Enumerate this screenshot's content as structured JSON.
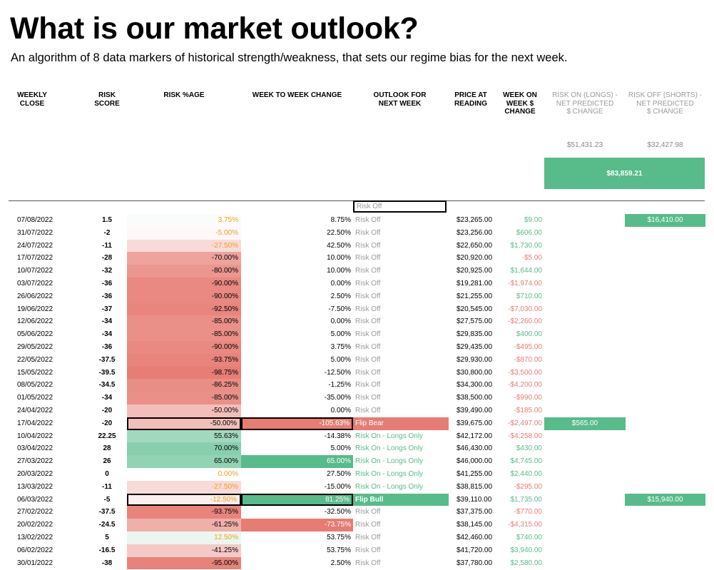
{
  "page": {
    "title": "What is our market outlook?",
    "subtitle": "An algorithm of 8 data markers of historical strength/weakness, that sets our regime bias for the next week."
  },
  "headers": {
    "weekly_close": "WEEKLY\nCLOSE",
    "risk_score": "RISK\nSCORE",
    "risk_pct": "RISK %AGE",
    "wow_change": "WEEK TO WEEK CHANGE",
    "outlook": "OUTLOOK FOR\nNEXT WEEK",
    "price": "PRICE AT\nREADING",
    "week_change": "WEEK ON\nWEEK $\nCHANGE",
    "risk_on": "RISK ON (LONGS) -\nNET PREDICTED\n$ CHANGE",
    "risk_off": "RISK OFF (SHORTS) -\nNET PREDICTED\n$ CHANGE"
  },
  "summary": {
    "risk_on_total": "$51,431.23",
    "risk_off_total": "$32,427.98",
    "combined_total": "$83,859.21"
  },
  "blank_row": {
    "outlook": "Risk Off"
  },
  "colors": {
    "green": "#57bb8a",
    "red": "#e67c73",
    "orange": "#f29e1b",
    "muted": "#9b9b9b"
  },
  "rows": [
    {
      "date": "07/08/2022",
      "score": "1.5",
      "pct": "3.75%",
      "pct_val": 3.75,
      "chg": "8.75%",
      "chg_style": "",
      "outlook": "Risk Off",
      "outlook_style": "",
      "price": "$23,265.00",
      "wk": "$9.00",
      "wk_sign": "pos",
      "on": "",
      "off": "$16,410.00",
      "boxed": false
    },
    {
      "date": "31/07/2022",
      "score": "-2",
      "pct": "-5.00%",
      "pct_val": -5,
      "chg": "22.50%",
      "chg_style": "",
      "outlook": "Risk Off",
      "outlook_style": "",
      "price": "$23,256.00",
      "wk": "$606.00",
      "wk_sign": "pos",
      "on": "",
      "off": "",
      "boxed": false
    },
    {
      "date": "24/07/2022",
      "score": "-11",
      "pct": "-27.50%",
      "pct_val": -27.5,
      "chg": "42.50%",
      "chg_style": "",
      "outlook": "Risk Off",
      "outlook_style": "",
      "price": "$22,650.00",
      "wk": "$1,730.00",
      "wk_sign": "pos",
      "on": "",
      "off": "",
      "boxed": false
    },
    {
      "date": "17/07/2022",
      "score": "-28",
      "pct": "-70.00%",
      "pct_val": -70,
      "chg": "10.00%",
      "chg_style": "",
      "outlook": "Risk Off",
      "outlook_style": "",
      "price": "$20,920.00",
      "wk": "-$5.00",
      "wk_sign": "neg",
      "on": "",
      "off": "",
      "boxed": false
    },
    {
      "date": "10/07/2022",
      "score": "-32",
      "pct": "-80.00%",
      "pct_val": -80,
      "chg": "10.00%",
      "chg_style": "",
      "outlook": "Risk Off",
      "outlook_style": "",
      "price": "$20,925.00",
      "wk": "$1,644.00",
      "wk_sign": "pos",
      "on": "",
      "off": "",
      "boxed": false
    },
    {
      "date": "03/07/2022",
      "score": "-36",
      "pct": "-90.00%",
      "pct_val": -90,
      "chg": "0.00%",
      "chg_style": "",
      "outlook": "Risk Off",
      "outlook_style": "",
      "price": "$19,281.00",
      "wk": "-$1,974.00",
      "wk_sign": "neg",
      "on": "",
      "off": "",
      "boxed": false
    },
    {
      "date": "26/06/2022",
      "score": "-36",
      "pct": "-90.00%",
      "pct_val": -90,
      "chg": "2.50%",
      "chg_style": "",
      "outlook": "Risk Off",
      "outlook_style": "",
      "price": "$21,255.00",
      "wk": "$710.00",
      "wk_sign": "pos",
      "on": "",
      "off": "",
      "boxed": false
    },
    {
      "date": "19/06/2022",
      "score": "-37",
      "pct": "-92.50%",
      "pct_val": -92.5,
      "chg": "-7.50%",
      "chg_style": "",
      "outlook": "Risk Off",
      "outlook_style": "",
      "price": "$20,545.00",
      "wk": "-$7,030.00",
      "wk_sign": "neg",
      "on": "",
      "off": "",
      "boxed": false
    },
    {
      "date": "12/06/2022",
      "score": "-34",
      "pct": "-85.00%",
      "pct_val": -85,
      "chg": "0.00%",
      "chg_style": "",
      "outlook": "Risk Off",
      "outlook_style": "",
      "price": "$27,575.00",
      "wk": "-$2,260.00",
      "wk_sign": "neg",
      "on": "",
      "off": "",
      "boxed": false
    },
    {
      "date": "05/06/2022",
      "score": "-34",
      "pct": "-85.00%",
      "pct_val": -85,
      "chg": "5.00%",
      "chg_style": "",
      "outlook": "Risk Off",
      "outlook_style": "",
      "price": "$29,835.00",
      "wk": "$400.00",
      "wk_sign": "pos",
      "on": "",
      "off": "",
      "boxed": false
    },
    {
      "date": "29/05/2022",
      "score": "-36",
      "pct": "-90.00%",
      "pct_val": -90,
      "chg": "3.75%",
      "chg_style": "",
      "outlook": "Risk Off",
      "outlook_style": "",
      "price": "$29,435.00",
      "wk": "-$495.00",
      "wk_sign": "neg",
      "on": "",
      "off": "",
      "boxed": false
    },
    {
      "date": "22/05/2022",
      "score": "-37.5",
      "pct": "-93.75%",
      "pct_val": -93.75,
      "chg": "5.00%",
      "chg_style": "",
      "outlook": "Risk Off",
      "outlook_style": "",
      "price": "$29,930.00",
      "wk": "-$870.00",
      "wk_sign": "neg",
      "on": "",
      "off": "",
      "boxed": false
    },
    {
      "date": "15/05/2022",
      "score": "-39.5",
      "pct": "-98.75%",
      "pct_val": -98.75,
      "chg": "-12.50%",
      "chg_style": "",
      "outlook": "Risk Off",
      "outlook_style": "",
      "price": "$30,800.00",
      "wk": "-$3,500.00",
      "wk_sign": "neg",
      "on": "",
      "off": "",
      "boxed": false
    },
    {
      "date": "08/05/2022",
      "score": "-34.5",
      "pct": "-86.25%",
      "pct_val": -86.25,
      "chg": "-1.25%",
      "chg_style": "",
      "outlook": "Risk Off",
      "outlook_style": "",
      "price": "$34,300.00",
      "wk": "-$4,200.00",
      "wk_sign": "neg",
      "on": "",
      "off": "",
      "boxed": false
    },
    {
      "date": "01/05/2022",
      "score": "-34",
      "pct": "-85.00%",
      "pct_val": -85,
      "chg": "-35.00%",
      "chg_style": "",
      "outlook": "Risk Off",
      "outlook_style": "",
      "price": "$38,500.00",
      "wk": "-$990.00",
      "wk_sign": "neg",
      "on": "",
      "off": "",
      "boxed": false
    },
    {
      "date": "24/04/2022",
      "score": "-20",
      "pct": "-50.00%",
      "pct_val": -50,
      "chg": "0.00%",
      "chg_style": "",
      "outlook": "Risk Off",
      "outlook_style": "",
      "price": "$39,490.00",
      "wk": "-$185.00",
      "wk_sign": "neg",
      "on": "",
      "off": "",
      "boxed": false
    },
    {
      "date": "17/04/2022",
      "score": "-20",
      "pct": "-50.00%",
      "pct_val": -50,
      "chg": "-105.63%",
      "chg_style": "red-fill",
      "outlook": "Flip Bear",
      "outlook_style": "flip-bear",
      "price": "$39,675.00",
      "wk": "-$2,497.00",
      "wk_sign": "neg",
      "on": "$565.00",
      "off": "",
      "boxed": true
    },
    {
      "date": "10/04/2022",
      "score": "22.25",
      "pct": "55.63%",
      "pct_val": 55.63,
      "chg": "-14.38%",
      "chg_style": "",
      "outlook": "Risk On - Longs Only",
      "outlook_style": "green-txt",
      "price": "$42,172.00",
      "wk": "-$4,258.00",
      "wk_sign": "neg",
      "on": "",
      "off": "",
      "boxed": false
    },
    {
      "date": "03/04/2022",
      "score": "28",
      "pct": "70.00%",
      "pct_val": 70,
      "chg": "5.00%",
      "chg_style": "",
      "outlook": "Risk On - Longs Only",
      "outlook_style": "green-txt",
      "price": "$46,430.00",
      "wk": "$430.00",
      "wk_sign": "pos",
      "on": "",
      "off": "",
      "boxed": false
    },
    {
      "date": "27/03/2022",
      "score": "26",
      "pct": "65.00%",
      "pct_val": 65,
      "chg": "65.00%",
      "chg_style": "green-fill",
      "outlook": "Risk On - Longs Only",
      "outlook_style": "green-txt",
      "price": "$46,000.00",
      "wk": "$4,745.00",
      "wk_sign": "pos",
      "on": "",
      "off": "",
      "boxed": false
    },
    {
      "date": "20/03/2022",
      "score": "0",
      "pct": "0.00%",
      "pct_val": 0,
      "chg": "27.50%",
      "chg_style": "",
      "outlook": "Risk On - Longs Only",
      "outlook_style": "green-txt",
      "price": "$41,255.00",
      "wk": "$2,440.00",
      "wk_sign": "pos",
      "on": "",
      "off": "",
      "boxed": false
    },
    {
      "date": "13/03/2022",
      "score": "-11",
      "pct": "-27.50%",
      "pct_val": -27.5,
      "chg": "-15.00%",
      "chg_style": "",
      "outlook": "Risk On - Longs Only",
      "outlook_style": "green-txt",
      "price": "$38,815.00",
      "wk": "-$295.00",
      "wk_sign": "neg",
      "on": "",
      "off": "",
      "boxed": false
    },
    {
      "date": "06/03/2022",
      "score": "-5",
      "pct": "-12.50%",
      "pct_val": -12.5,
      "chg": "81.25%",
      "chg_style": "green-fill",
      "outlook": "Flip Bull",
      "outlook_style": "flip-bull",
      "price": "$39,110.00",
      "wk": "$1,735.00",
      "wk_sign": "pos",
      "on": "",
      "off": "$15,940.00",
      "boxed": true
    },
    {
      "date": "27/02/2022",
      "score": "-37.5",
      "pct": "-93.75%",
      "pct_val": -93.75,
      "chg": "-32.50%",
      "chg_style": "",
      "outlook": "Risk Off",
      "outlook_style": "",
      "price": "$37,375.00",
      "wk": "-$770.00",
      "wk_sign": "neg",
      "on": "",
      "off": "",
      "boxed": false
    },
    {
      "date": "20/02/2022",
      "score": "-24.5",
      "pct": "-61.25%",
      "pct_val": -61.25,
      "chg": "-73.75%",
      "chg_style": "red-fill",
      "outlook": "Risk Off",
      "outlook_style": "",
      "price": "$38,145.00",
      "wk": "-$4,315.00",
      "wk_sign": "neg",
      "on": "",
      "off": "",
      "boxed": false
    },
    {
      "date": "13/02/2022",
      "score": "5",
      "pct": "12.50%",
      "pct_val": 12.5,
      "chg": "53.75%",
      "chg_style": "",
      "outlook": "Risk Off",
      "outlook_style": "",
      "price": "$42,460.00",
      "wk": "$740.00",
      "wk_sign": "pos",
      "on": "",
      "off": "",
      "boxed": false
    },
    {
      "date": "06/02/2022",
      "score": "-16.5",
      "pct": "-41.25%",
      "pct_val": -41.25,
      "chg": "53.75%",
      "chg_style": "",
      "outlook": "Risk Off",
      "outlook_style": "",
      "price": "$41,720.00",
      "wk": "$3,940.00",
      "wk_sign": "pos",
      "on": "",
      "off": "",
      "boxed": false
    },
    {
      "date": "30/01/2022",
      "score": "-38",
      "pct": "-95.00%",
      "pct_val": -95,
      "chg": "2.50%",
      "chg_style": "",
      "outlook": "Risk Off",
      "outlook_style": "",
      "price": "$37,780.00",
      "wk": "$2,580.00",
      "wk_sign": "pos",
      "on": "",
      "off": "",
      "boxed": false
    }
  ]
}
